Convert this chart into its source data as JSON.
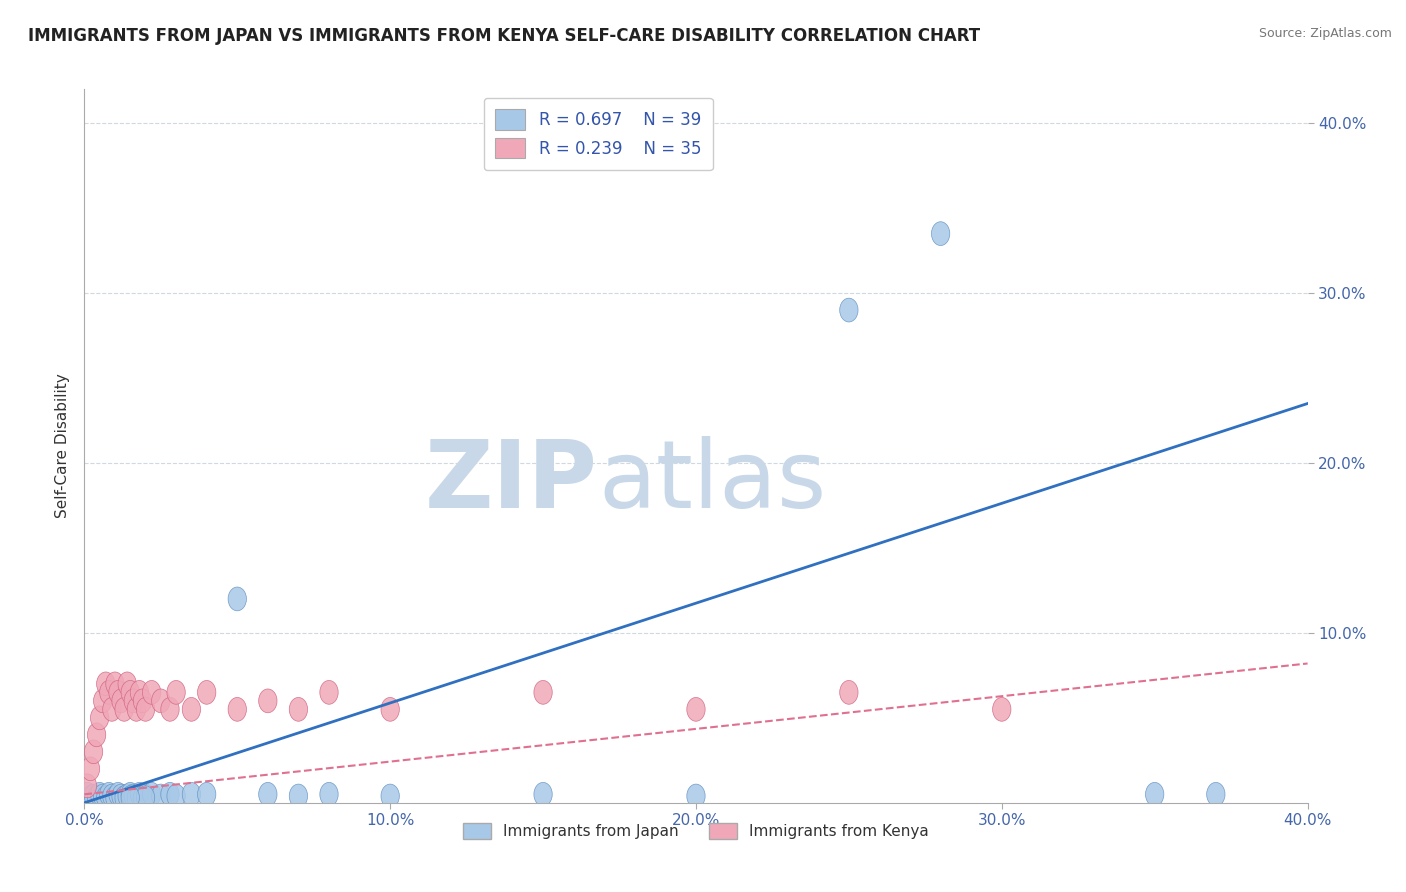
{
  "title": "IMMIGRANTS FROM JAPAN VS IMMIGRANTS FROM KENYA SELF-CARE DISABILITY CORRELATION CHART",
  "source": "Source: ZipAtlas.com",
  "ylabel": "Self-Care Disability",
  "xlim": [
    0.0,
    0.4
  ],
  "ylim": [
    0.0,
    0.42
  ],
  "xticks": [
    0.0,
    0.1,
    0.2,
    0.3,
    0.4
  ],
  "yticks": [
    0.1,
    0.2,
    0.3,
    0.4
  ],
  "xtick_labels": [
    "0.0%",
    "10.0%",
    "20.0%",
    "30.0%",
    "40.0%"
  ],
  "ytick_labels": [
    "10.0%",
    "20.0%",
    "30.0%",
    "40.0%"
  ],
  "grid_color": "#d0d8e0",
  "background_color": "#ffffff",
  "watermark": "ZIPatlas",
  "watermark_color": "#c8d8e8",
  "japan_color": "#a8c8e8",
  "kenya_color": "#f0a8b8",
  "japan_edge_color": "#6090c0",
  "kenya_edge_color": "#d06080",
  "japan_line_color": "#3070c0",
  "kenya_line_color": "#e07090",
  "japan_R": 0.697,
  "japan_N": 39,
  "kenya_R": 0.239,
  "kenya_N": 35,
  "legend_label_japan": "Immigrants from Japan",
  "legend_label_kenya": "Immigrants from Kenya",
  "japan_trend_x": [
    0.0,
    0.4
  ],
  "japan_trend_y": [
    0.0,
    0.235
  ],
  "kenya_trend_x": [
    0.0,
    0.4
  ],
  "kenya_trend_y": [
    0.005,
    0.082
  ],
  "japan_scatter_x": [
    0.001,
    0.002,
    0.003,
    0.004,
    0.005,
    0.006,
    0.007,
    0.008,
    0.009,
    0.01,
    0.011,
    0.012,
    0.013,
    0.014,
    0.015,
    0.016,
    0.017,
    0.018,
    0.019,
    0.02,
    0.022,
    0.025,
    0.028,
    0.03,
    0.035,
    0.04,
    0.05,
    0.06,
    0.07,
    0.08,
    0.1,
    0.15,
    0.2,
    0.25,
    0.28,
    0.35,
    0.37,
    0.02,
    0.015
  ],
  "japan_scatter_y": [
    0.005,
    0.003,
    0.004,
    0.003,
    0.005,
    0.004,
    0.003,
    0.005,
    0.004,
    0.003,
    0.005,
    0.004,
    0.003,
    0.004,
    0.005,
    0.004,
    0.003,
    0.005,
    0.003,
    0.004,
    0.005,
    0.004,
    0.005,
    0.004,
    0.005,
    0.005,
    0.12,
    0.005,
    0.004,
    0.005,
    0.004,
    0.005,
    0.004,
    0.29,
    0.335,
    0.005,
    0.005,
    0.003,
    0.003
  ],
  "kenya_scatter_x": [
    0.001,
    0.002,
    0.003,
    0.004,
    0.005,
    0.006,
    0.007,
    0.008,
    0.009,
    0.01,
    0.011,
    0.012,
    0.013,
    0.014,
    0.015,
    0.016,
    0.017,
    0.018,
    0.019,
    0.02,
    0.022,
    0.025,
    0.028,
    0.03,
    0.035,
    0.04,
    0.05,
    0.06,
    0.07,
    0.08,
    0.1,
    0.15,
    0.2,
    0.25,
    0.3
  ],
  "kenya_scatter_y": [
    0.01,
    0.02,
    0.03,
    0.04,
    0.05,
    0.06,
    0.07,
    0.065,
    0.055,
    0.07,
    0.065,
    0.06,
    0.055,
    0.07,
    0.065,
    0.06,
    0.055,
    0.065,
    0.06,
    0.055,
    0.065,
    0.06,
    0.055,
    0.065,
    0.055,
    0.065,
    0.055,
    0.06,
    0.055,
    0.065,
    0.055,
    0.065,
    0.055,
    0.065,
    0.055
  ]
}
